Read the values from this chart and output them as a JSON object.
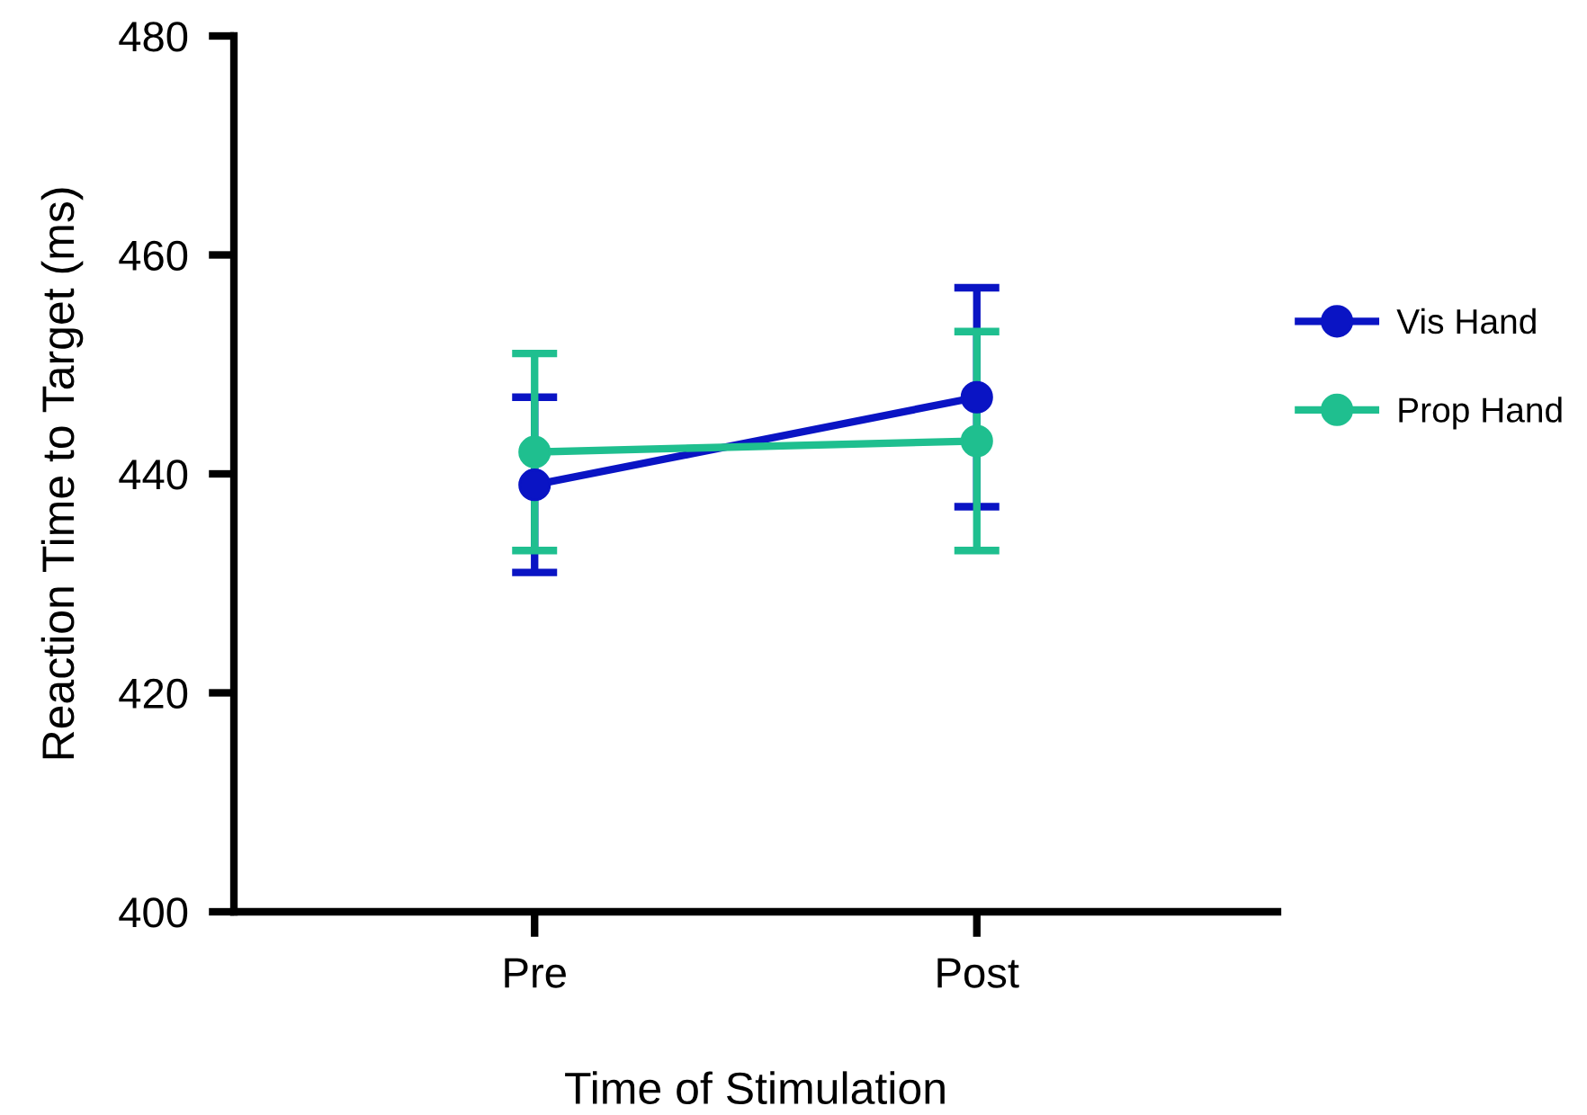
{
  "chart_data": {
    "type": "line",
    "xlabel": "Time of Stimulation",
    "ylabel": "Reaction Time to Target (ms)",
    "categories": [
      "Pre",
      "Post"
    ],
    "series": [
      {
        "name": "Vis Hand",
        "color": "#0a14c4",
        "values": [
          439,
          447
        ],
        "errors": [
          8,
          10
        ]
      },
      {
        "name": "Prop Hand",
        "color": "#1fbf8f",
        "values": [
          442,
          443
        ],
        "errors": [
          9,
          10
        ]
      }
    ],
    "ylim": [
      400,
      480
    ],
    "yticks": [
      400,
      420,
      440,
      460,
      480
    ],
    "grid": false,
    "legend": "right",
    "marker": "circle",
    "line_style": "solid"
  }
}
